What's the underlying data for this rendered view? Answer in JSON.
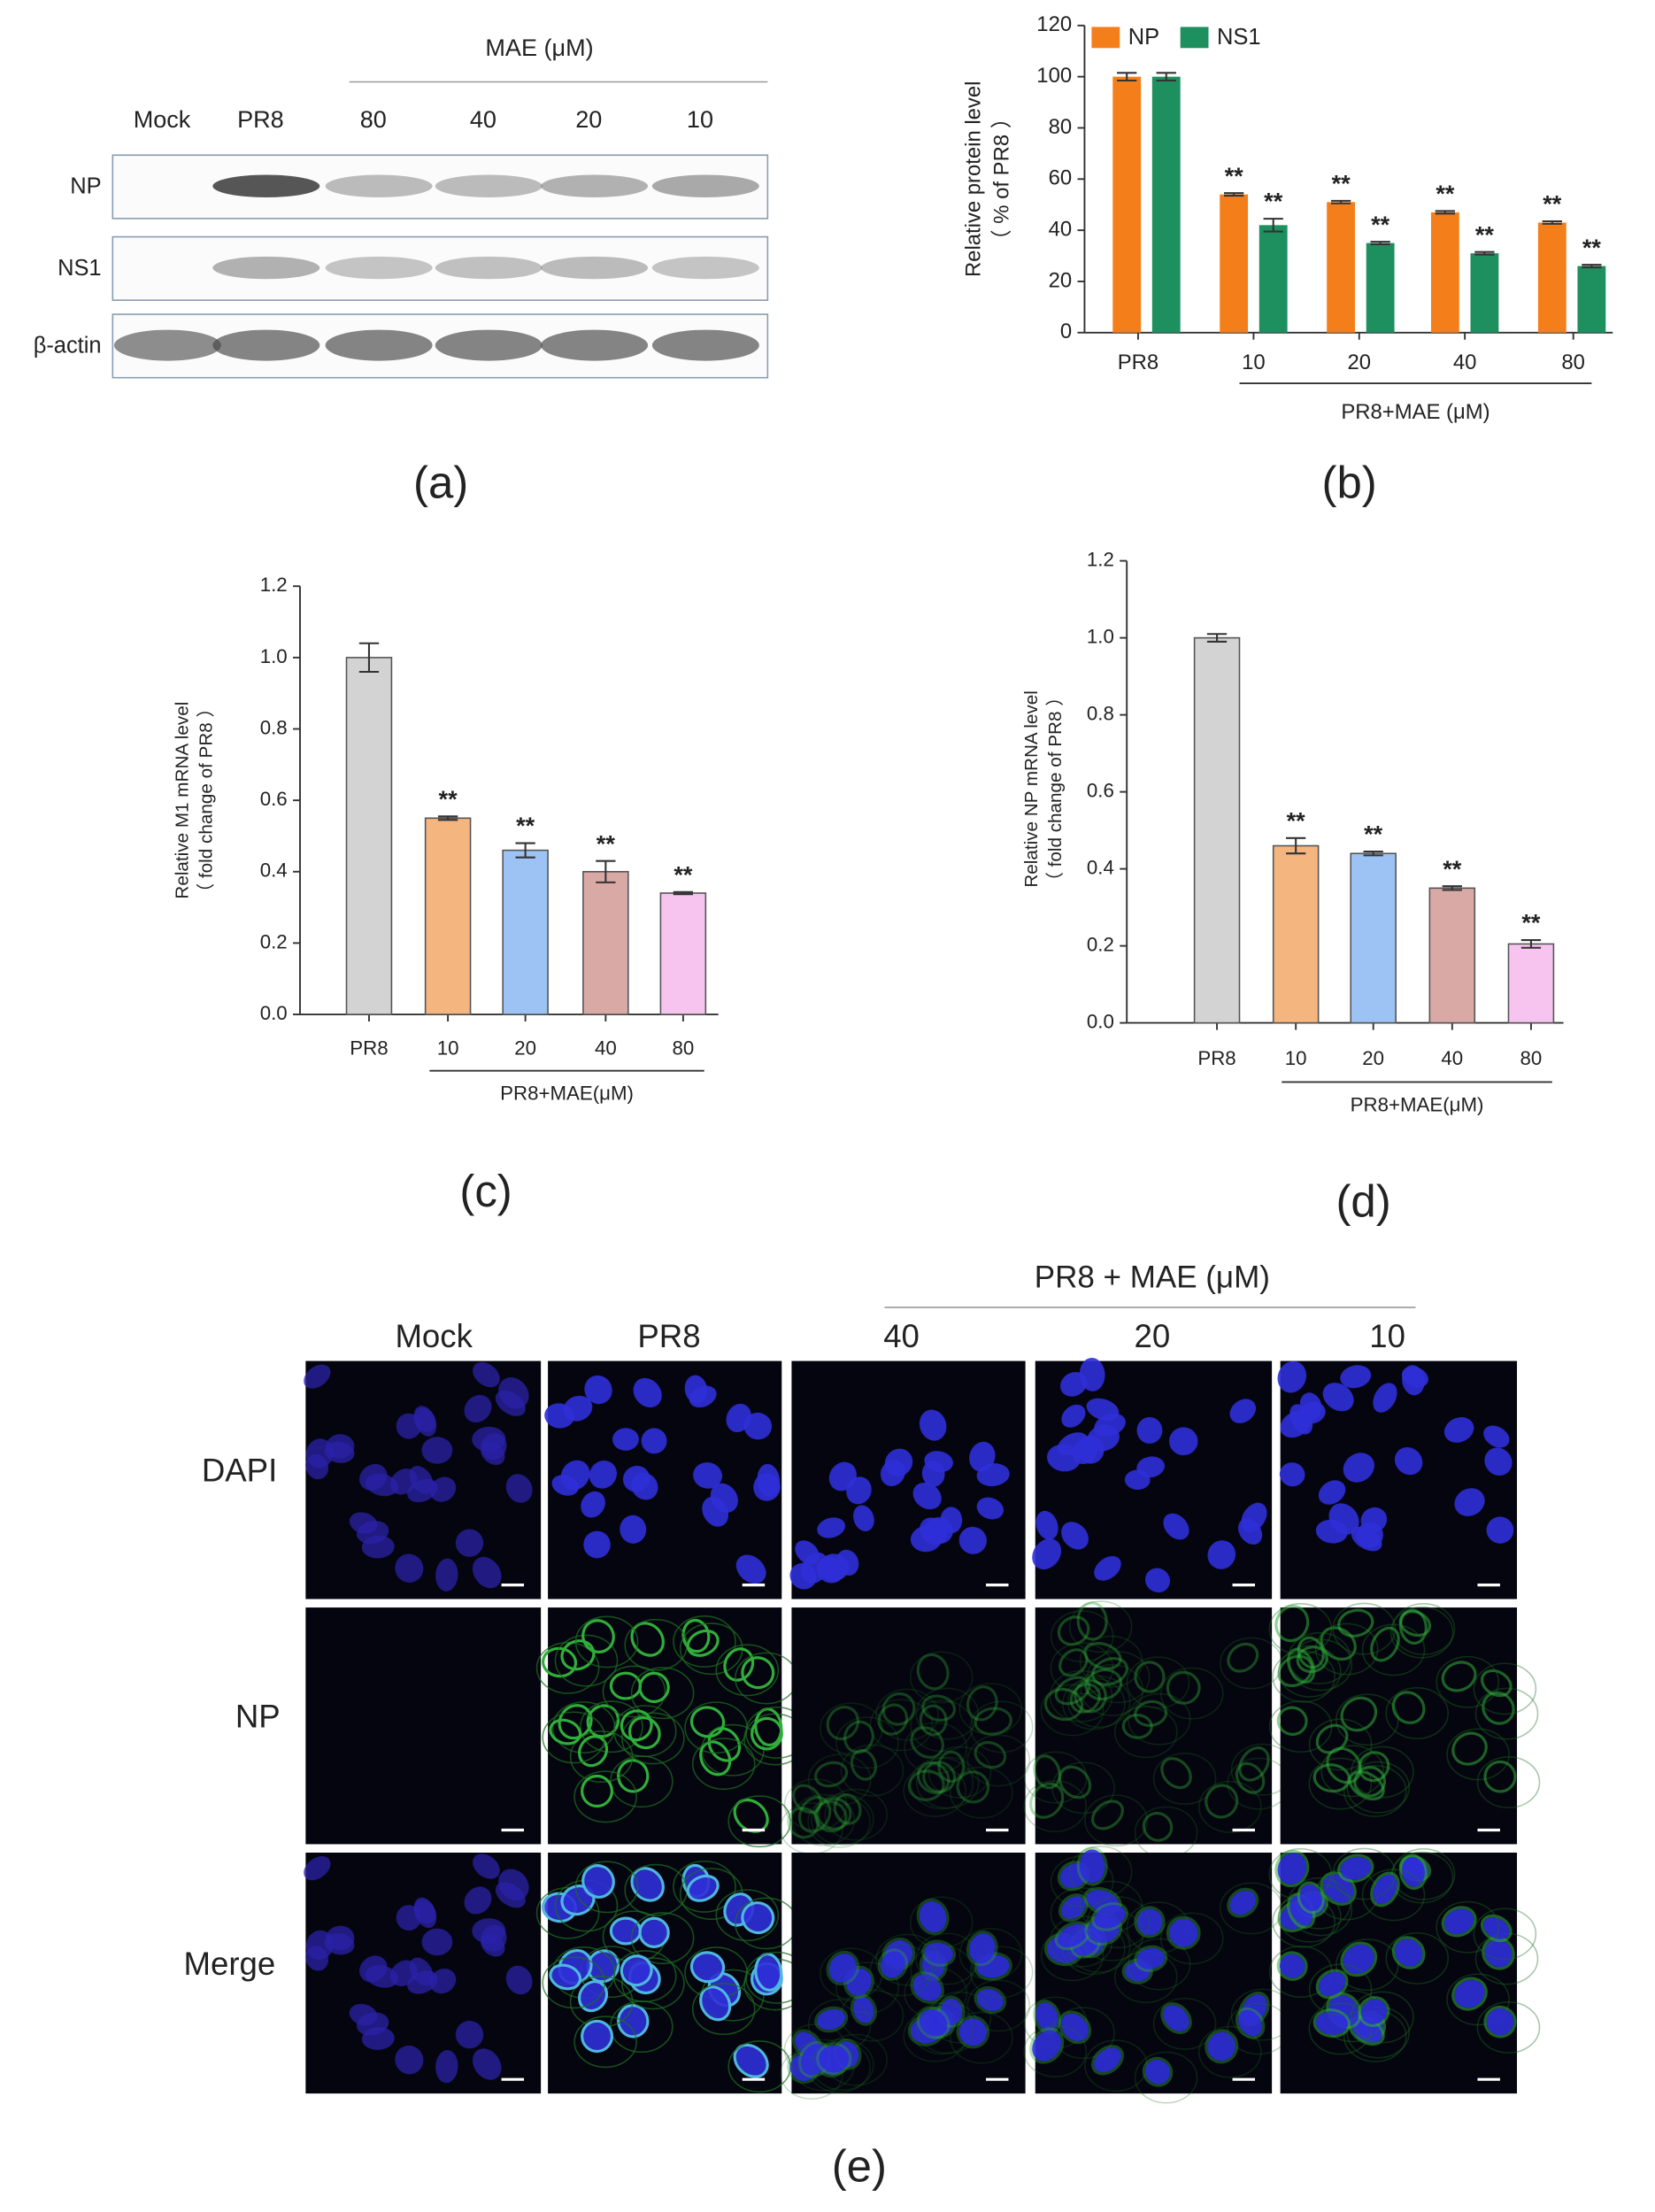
{
  "blot": {
    "header": "MAE (μM)",
    "lanes": [
      "Mock",
      "PR8",
      "80",
      "40",
      "20",
      "10"
    ],
    "rows": [
      "NP",
      "NS1",
      "β-actin"
    ],
    "panel_label": "(a)"
  },
  "chart_data": [
    {
      "type": "bar",
      "panel_label": "(b)",
      "y_label": [
        "Relative protein level",
        "（ % of PR8 ）"
      ],
      "categories": [
        "PR8",
        "10",
        "20",
        "40",
        "80"
      ],
      "x_group_label": "PR8+MAE (μM)",
      "series": [
        {
          "name": "NP",
          "color": "#f47f1a",
          "values": [
            100,
            54,
            51,
            47,
            43
          ],
          "errors": [
            1.5,
            0.5,
            0.5,
            0.5,
            0.5
          ],
          "significance": [
            null,
            "**",
            "**",
            "**",
            "**"
          ]
        },
        {
          "name": "NS1",
          "color": "#1e8f5e",
          "values": [
            100,
            42,
            35,
            31,
            26
          ],
          "errors": [
            1.5,
            2.5,
            0.5,
            0.5,
            0.5
          ],
          "significance": [
            null,
            "**",
            "**",
            "**",
            "**"
          ]
        }
      ],
      "ylim": [
        0,
        120
      ],
      "yticks": [
        0,
        20,
        40,
        60,
        80,
        100,
        120
      ]
    },
    {
      "type": "bar",
      "panel_label": "(c)",
      "y_label": [
        "Relative M1 mRNA level",
        "（ fold change of PR8 ）"
      ],
      "categories": [
        "PR8",
        "10",
        "20",
        "40",
        "80"
      ],
      "x_group_label": "PR8+MAE(μM)",
      "values": [
        1.0,
        0.55,
        0.46,
        0.4,
        0.34
      ],
      "errors": [
        0.04,
        0.005,
        0.02,
        0.03,
        0.003
      ],
      "colors": [
        "#d3d3d3",
        "#f5b57f",
        "#9cc3f3",
        "#d9a9a5",
        "#f7c4ef"
      ],
      "significance": [
        null,
        "**",
        "**",
        "**",
        "**"
      ],
      "ylim": [
        0,
        1.2
      ],
      "yticks": [
        {
          "value": 0,
          "label": "0.0"
        },
        0.2,
        0.4,
        0.6,
        0.8,
        {
          "value": 1,
          "label": "1.0"
        },
        1.2
      ]
    },
    {
      "type": "bar",
      "panel_label": "(d)",
      "y_label": [
        "Relative NP mRNA level",
        "（ fold change of PR8 ）"
      ],
      "categories": [
        "PR8",
        "10",
        "20",
        "40",
        "80"
      ],
      "x_group_label": "PR8+MAE(μM)",
      "values": [
        1.0,
        0.46,
        0.44,
        0.35,
        0.205
      ],
      "errors": [
        0.01,
        0.02,
        0.005,
        0.005,
        0.01
      ],
      "colors": [
        "#d3d3d3",
        "#f5b57f",
        "#9cc3f3",
        "#d9a9a5",
        "#f7c4ef"
      ],
      "significance": [
        null,
        "**",
        "**",
        "**",
        "**"
      ],
      "ylim": [
        0,
        1.2
      ],
      "yticks": [
        {
          "value": 0,
          "label": "0.0"
        },
        0.2,
        0.4,
        0.6,
        0.8,
        {
          "value": 1,
          "label": "1.0"
        },
        1.2
      ]
    }
  ],
  "microscopy": {
    "header": "PR8 + MAE (μM)",
    "columns": [
      "Mock",
      "PR8",
      "40",
      "20",
      "10"
    ],
    "rows": [
      "DAPI",
      "NP",
      "Merge"
    ],
    "panel_label": "(e)"
  }
}
